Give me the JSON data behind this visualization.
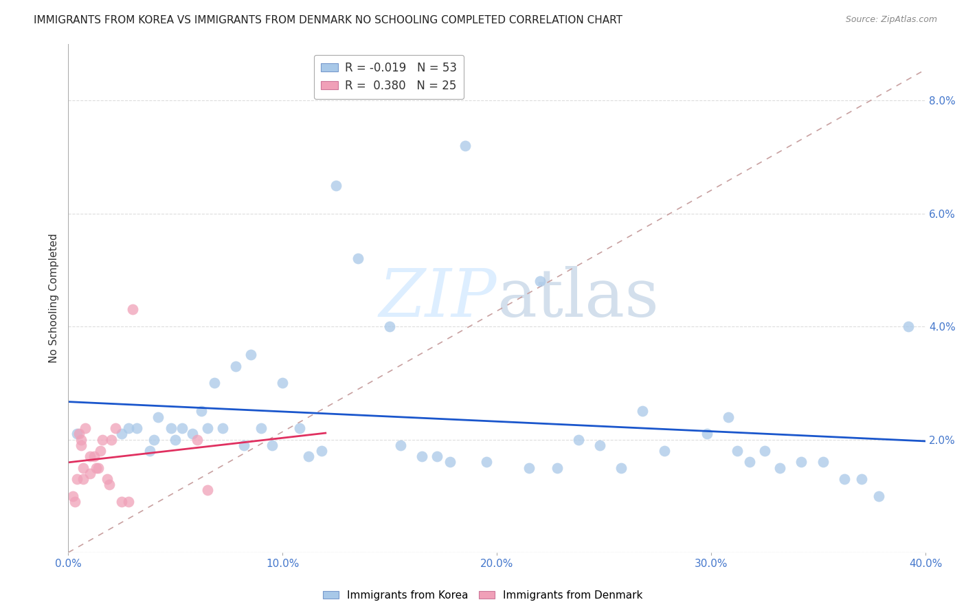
{
  "title": "IMMIGRANTS FROM KOREA VS IMMIGRANTS FROM DENMARK NO SCHOOLING COMPLETED CORRELATION CHART",
  "source": "Source: ZipAtlas.com",
  "ylabel": "No Schooling Completed",
  "xlim": [
    0.0,
    0.4
  ],
  "ylim": [
    0.0,
    0.09
  ],
  "xticks": [
    0.0,
    0.1,
    0.2,
    0.3,
    0.4
  ],
  "yticks": [
    0.0,
    0.02,
    0.04,
    0.06,
    0.08
  ],
  "ytick_labels_right": [
    "",
    "2.0%",
    "4.0%",
    "6.0%",
    "8.0%"
  ],
  "xtick_labels": [
    "0.0%",
    "10.0%",
    "20.0%",
    "30.0%",
    "40.0%"
  ],
  "legend_korea_R": "-0.019",
  "legend_korea_N": "53",
  "legend_denmark_R": "0.380",
  "legend_denmark_N": "25",
  "korea_color": "#a8c8e8",
  "denmark_color": "#f0a0b8",
  "korea_line_color": "#1a56cc",
  "denmark_line_color": "#e03060",
  "diagonal_color": "#c8a0a0",
  "watermark_color": "#ddeeff",
  "background_color": "#ffffff",
  "grid_color": "#dddddd",
  "title_color": "#222222",
  "tick_color": "#4477cc",
  "source_color": "#888888",
  "korea_scatter_x": [
    0.004,
    0.025,
    0.028,
    0.032,
    0.038,
    0.04,
    0.042,
    0.048,
    0.05,
    0.053,
    0.058,
    0.062,
    0.065,
    0.068,
    0.072,
    0.078,
    0.082,
    0.085,
    0.09,
    0.095,
    0.1,
    0.108,
    0.112,
    0.118,
    0.125,
    0.135,
    0.155,
    0.165,
    0.172,
    0.178,
    0.195,
    0.215,
    0.228,
    0.238,
    0.248,
    0.258,
    0.268,
    0.278,
    0.298,
    0.308,
    0.312,
    0.318,
    0.325,
    0.332,
    0.342,
    0.352,
    0.362,
    0.37,
    0.378,
    0.392,
    0.22,
    0.185,
    0.15
  ],
  "korea_scatter_y": [
    0.021,
    0.021,
    0.022,
    0.022,
    0.018,
    0.02,
    0.024,
    0.022,
    0.02,
    0.022,
    0.021,
    0.025,
    0.022,
    0.03,
    0.022,
    0.033,
    0.019,
    0.035,
    0.022,
    0.019,
    0.03,
    0.022,
    0.017,
    0.018,
    0.065,
    0.052,
    0.019,
    0.017,
    0.017,
    0.016,
    0.016,
    0.015,
    0.015,
    0.02,
    0.019,
    0.015,
    0.025,
    0.018,
    0.021,
    0.024,
    0.018,
    0.016,
    0.018,
    0.015,
    0.016,
    0.016,
    0.013,
    0.013,
    0.01,
    0.04,
    0.048,
    0.072,
    0.04
  ],
  "denmark_scatter_x": [
    0.002,
    0.003,
    0.004,
    0.005,
    0.006,
    0.006,
    0.007,
    0.007,
    0.008,
    0.01,
    0.012,
    0.013,
    0.014,
    0.015,
    0.016,
    0.018,
    0.019,
    0.02,
    0.022,
    0.025,
    0.028,
    0.03,
    0.06,
    0.065,
    0.01
  ],
  "denmark_scatter_y": [
    0.01,
    0.009,
    0.013,
    0.021,
    0.02,
    0.019,
    0.015,
    0.013,
    0.022,
    0.014,
    0.017,
    0.015,
    0.015,
    0.018,
    0.02,
    0.013,
    0.012,
    0.02,
    0.022,
    0.009,
    0.009,
    0.043,
    0.02,
    0.011,
    0.017
  ],
  "title_fontsize": 11,
  "axis_tick_fontsize": 11,
  "ylabel_fontsize": 11
}
